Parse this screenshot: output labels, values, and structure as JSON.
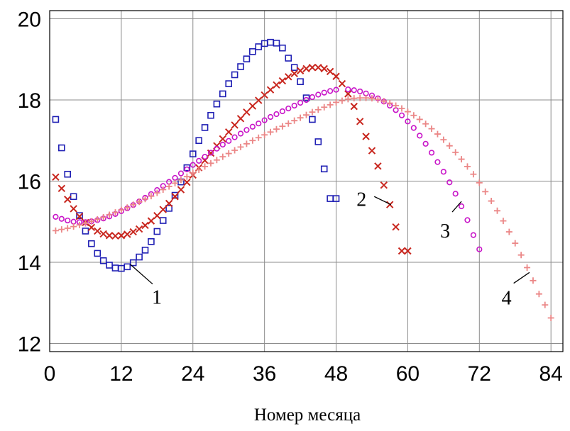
{
  "chart_data": {
    "type": "scatter",
    "title": "",
    "xlabel": "Номер месяца",
    "ylabel": "",
    "xlim": [
      0,
      86
    ],
    "ylim": [
      11.8,
      20.2
    ],
    "xticks": [
      0,
      12,
      24,
      36,
      48,
      60,
      72,
      84
    ],
    "yticks": [
      12,
      14,
      16,
      18,
      20
    ],
    "xtick_labels": [
      "0",
      "12",
      "24",
      "36",
      "48",
      "60",
      "72",
      "84"
    ],
    "ytick_labels": [
      "12",
      "14",
      "16",
      "18",
      "20"
    ],
    "grid": true,
    "legend": "none",
    "series": [
      {
        "label": "1",
        "marker": "square",
        "color": "#1f1fb4",
        "x": [
          1,
          2,
          3,
          4,
          5,
          6,
          7,
          8,
          9,
          10,
          11,
          12,
          13,
          14,
          15,
          16,
          17,
          18,
          19,
          20,
          21,
          22,
          23,
          24,
          25,
          26,
          27,
          28,
          29,
          30,
          31,
          32,
          33,
          34,
          35,
          36,
          37,
          38,
          39,
          40,
          41,
          42,
          43,
          44,
          45,
          46,
          47,
          48
        ],
        "y": [
          17.52,
          16.82,
          16.17,
          15.62,
          15.15,
          14.77,
          14.46,
          14.22,
          14.04,
          13.93,
          13.86,
          13.85,
          13.89,
          13.99,
          14.13,
          14.3,
          14.51,
          14.76,
          15.03,
          15.33,
          15.65,
          15.98,
          16.33,
          16.67,
          17.0,
          17.32,
          17.62,
          17.9,
          18.15,
          18.4,
          18.62,
          18.82,
          19.01,
          19.19,
          19.31,
          19.39,
          19.42,
          19.4,
          19.28,
          19.03,
          18.8,
          18.45,
          18.05,
          17.52,
          16.97,
          16.3,
          15.57,
          15.57
        ]
      },
      {
        "label": "2",
        "marker": "x",
        "color": "#c8261e",
        "x": [
          1,
          2,
          3,
          4,
          5,
          6,
          7,
          8,
          9,
          10,
          11,
          12,
          13,
          14,
          15,
          16,
          17,
          18,
          19,
          20,
          21,
          22,
          23,
          24,
          25,
          26,
          27,
          28,
          29,
          30,
          31,
          32,
          33,
          34,
          35,
          36,
          37,
          38,
          39,
          40,
          41,
          42,
          43,
          44,
          45,
          46,
          47,
          48,
          49,
          50,
          51,
          52,
          53,
          54,
          55,
          56,
          57,
          58,
          59,
          60
        ],
        "y": [
          16.1,
          15.82,
          15.55,
          15.32,
          15.13,
          14.98,
          14.86,
          14.77,
          14.7,
          14.66,
          14.65,
          14.66,
          14.69,
          14.75,
          14.82,
          14.91,
          15.02,
          15.15,
          15.3,
          15.45,
          15.62,
          15.79,
          15.97,
          16.15,
          16.33,
          16.51,
          16.69,
          16.87,
          17.04,
          17.21,
          17.38,
          17.54,
          17.7,
          17.85,
          17.99,
          18.12,
          18.25,
          18.37,
          18.47,
          18.57,
          18.65,
          18.72,
          18.77,
          18.8,
          18.8,
          18.77,
          18.7,
          18.58,
          18.4,
          18.15,
          17.84,
          17.47,
          17.1,
          16.75,
          16.37,
          15.9,
          15.42,
          14.87,
          14.28,
          14.28
        ]
      },
      {
        "label": "3",
        "marker": "circle",
        "color": "#c814c8",
        "x": [
          1,
          2,
          3,
          4,
          5,
          6,
          7,
          8,
          9,
          10,
          11,
          12,
          13,
          14,
          15,
          16,
          17,
          18,
          19,
          20,
          21,
          22,
          23,
          24,
          25,
          26,
          27,
          28,
          29,
          30,
          31,
          32,
          33,
          34,
          35,
          36,
          37,
          38,
          39,
          40,
          41,
          42,
          43,
          44,
          45,
          46,
          47,
          48,
          50,
          51,
          52,
          53,
          54,
          55,
          56,
          57,
          58,
          59,
          60,
          61,
          62,
          63,
          64,
          65,
          66,
          67,
          68,
          69,
          70,
          71,
          72
        ],
        "y": [
          15.12,
          15.07,
          15.03,
          15.0,
          14.99,
          14.99,
          15.01,
          15.04,
          15.08,
          15.13,
          15.19,
          15.26,
          15.33,
          15.41,
          15.5,
          15.59,
          15.68,
          15.78,
          15.88,
          15.98,
          16.08,
          16.19,
          16.29,
          16.4,
          16.5,
          16.6,
          16.7,
          16.8,
          16.9,
          16.99,
          17.08,
          17.17,
          17.26,
          17.34,
          17.42,
          17.5,
          17.58,
          17.65,
          17.72,
          17.79,
          17.86,
          17.93,
          18.0,
          18.07,
          18.13,
          18.18,
          18.22,
          18.25,
          18.26,
          18.24,
          18.21,
          18.16,
          18.11,
          18.04,
          17.96,
          17.86,
          17.75,
          17.62,
          17.47,
          17.31,
          17.12,
          16.92,
          16.7,
          16.47,
          16.23,
          15.97,
          15.69,
          15.38,
          15.04,
          14.67,
          14.32
        ]
      },
      {
        "label": "4",
        "marker": "plus",
        "color": "#eb8787",
        "x": [
          1,
          2,
          3,
          4,
          5,
          6,
          7,
          8,
          9,
          10,
          11,
          12,
          13,
          14,
          15,
          16,
          17,
          18,
          19,
          20,
          21,
          22,
          23,
          24,
          25,
          26,
          27,
          28,
          29,
          30,
          31,
          32,
          33,
          34,
          35,
          36,
          37,
          38,
          39,
          40,
          41,
          42,
          43,
          44,
          45,
          46,
          47,
          48,
          49,
          50,
          51,
          52,
          53,
          54,
          55,
          56,
          57,
          58,
          59,
          60,
          61,
          62,
          63,
          64,
          65,
          66,
          67,
          68,
          69,
          70,
          71,
          72,
          73,
          74,
          75,
          76,
          77,
          78,
          79,
          80,
          81,
          82,
          83,
          84
        ],
        "y": [
          14.78,
          14.81,
          14.84,
          14.88,
          14.92,
          14.96,
          15.01,
          15.06,
          15.11,
          15.17,
          15.23,
          15.29,
          15.35,
          15.42,
          15.49,
          15.56,
          15.63,
          15.71,
          15.79,
          15.87,
          15.95,
          16.03,
          16.11,
          16.2,
          16.28,
          16.36,
          16.44,
          16.52,
          16.6,
          16.68,
          16.76,
          16.84,
          16.92,
          17.0,
          17.07,
          17.14,
          17.21,
          17.28,
          17.35,
          17.42,
          17.49,
          17.56,
          17.63,
          17.7,
          17.76,
          17.82,
          17.88,
          17.94,
          17.98,
          18.02,
          18.04,
          18.05,
          18.05,
          18.04,
          18.01,
          17.97,
          17.92,
          17.86,
          17.79,
          17.71,
          17.62,
          17.52,
          17.41,
          17.29,
          17.16,
          17.02,
          16.87,
          16.71,
          16.54,
          16.36,
          16.17,
          15.96,
          15.74,
          15.51,
          15.27,
          15.02,
          14.75,
          14.47,
          14.18,
          13.87,
          13.55,
          13.22,
          12.95,
          12.63
        ]
      }
    ],
    "annotations": [
      {
        "text": "1",
        "point_x": 13.5,
        "point_y": 13.95,
        "label_x": 18.2,
        "label_y": 13.15
      },
      {
        "text": "2",
        "point_x": 57.2,
        "point_y": 15.42,
        "label_x": 53.2,
        "label_y": 15.55
      },
      {
        "text": "3",
        "point_x": 69.0,
        "point_y": 15.5,
        "label_x": 66.5,
        "label_y": 14.75
      },
      {
        "text": "4",
        "point_x": 80.4,
        "point_y": 13.75,
        "label_x": 76.8,
        "label_y": 13.1
      }
    ]
  }
}
